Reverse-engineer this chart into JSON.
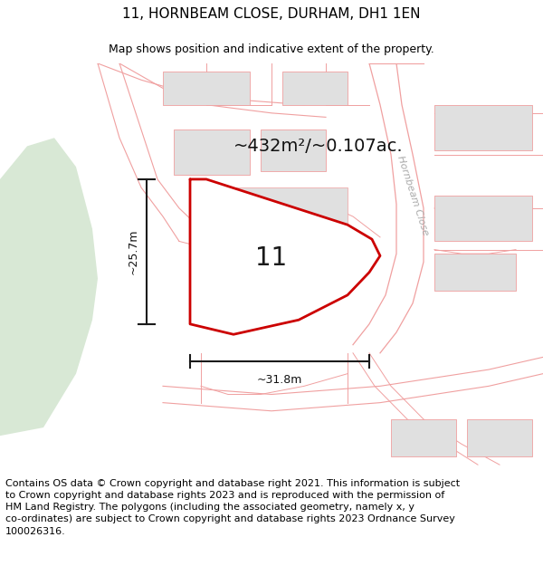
{
  "title": "11, HORNBEAM CLOSE, DURHAM, DH1 1EN",
  "subtitle": "Map shows position and indicative extent of the property.",
  "footer": "Contains OS data © Crown copyright and database right 2021. This information is subject\nto Crown copyright and database rights 2023 and is reproduced with the permission of\nHM Land Registry. The polygons (including the associated geometry, namely x, y\nco-ordinates) are subject to Crown copyright and database rights 2023 Ordnance Survey\n100026316.",
  "area_label": "~432m²/~0.107ac.",
  "plot_number": "11",
  "dim_vertical": "~25.7m",
  "dim_horizontal": "~31.8m",
  "street_label": "Hornbeam Close",
  "bg_color": "#ffffff",
  "map_bg": "#ffffff",
  "green_color": "#d8e8d5",
  "building_color": "#e0e0e0",
  "road_line_color": "#f0a0a0",
  "road_fill_color": "#f5f5f5",
  "plot_color": "#cc0000",
  "dim_color": "#1a1a1a",
  "text_color": "#111111",
  "street_text_color": "#aaaaaa",
  "title_fontsize": 11,
  "subtitle_fontsize": 9,
  "area_fontsize": 14,
  "number_fontsize": 20,
  "dim_fontsize": 9,
  "street_fontsize": 8,
  "footer_fontsize": 8
}
